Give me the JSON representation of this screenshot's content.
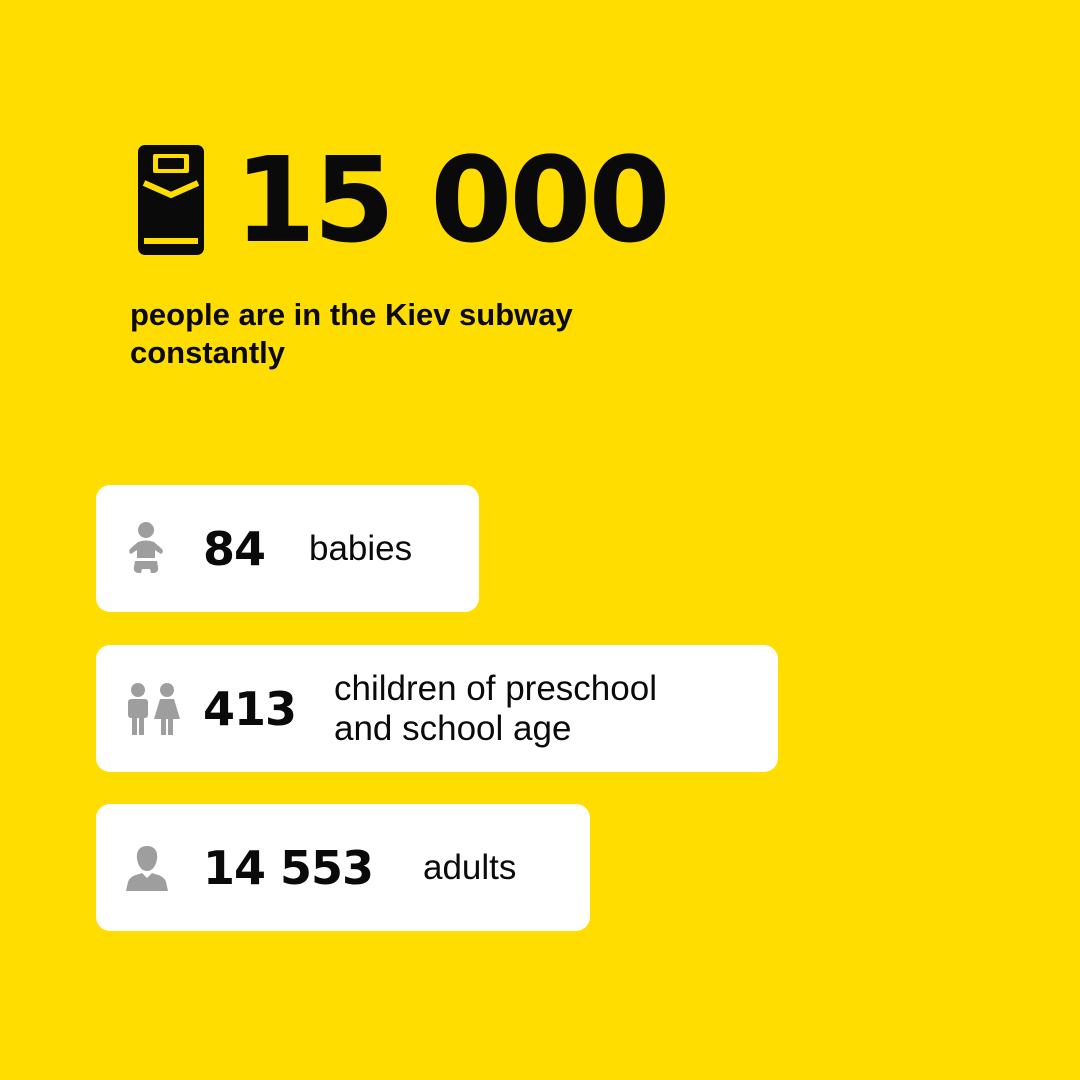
{
  "headline": {
    "icon": "bed-icon",
    "number": "15 000",
    "subtitle_line1": "people are in the Kiev subway",
    "subtitle_line2": "constantly"
  },
  "stats": [
    {
      "icon": "baby-icon",
      "number": "84",
      "label_line1": "babies",
      "label_line2": ""
    },
    {
      "icon": "children-icon",
      "number": "413",
      "label_line1": "children of preschool",
      "label_line2": "and school age"
    },
    {
      "icon": "adult-icon",
      "number": "14 553",
      "label_line1": "adults",
      "label_line2": ""
    }
  ],
  "colors": {
    "background": "#FFDD00",
    "card": "#FFFFFF",
    "text": "#0A0A0A",
    "icon_gray": "#9E9E9E"
  }
}
